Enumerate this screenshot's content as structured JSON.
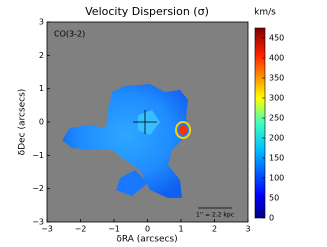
{
  "chart_data": {
    "type": "image",
    "title": "Velocity Dispersion (σ)",
    "xlabel": "δRA (arcsecs)",
    "ylabel": "δDec (arcsecs)",
    "xlim": [
      -3,
      3
    ],
    "ylim": [
      -3,
      3
    ],
    "xticks": [
      {
        "value": -3,
        "label": "−3"
      },
      {
        "value": -2,
        "label": "−2"
      },
      {
        "value": -1,
        "label": "−1"
      },
      0,
      1,
      2,
      3
    ],
    "yticks": [
      {
        "value": -3,
        "label": "−3"
      },
      {
        "value": -2,
        "label": "−2"
      },
      {
        "value": -1,
        "label": "−1"
      },
      0,
      1,
      2,
      3
    ],
    "colorbar": {
      "label": "km/s",
      "lim": [
        0,
        475
      ],
      "ticks": [
        0,
        50,
        100,
        150,
        200,
        250,
        300,
        350,
        400,
        450
      ]
    },
    "annotations": [
      "CO(3-2)",
      "1'' = 2.2 kpc"
    ]
  }
}
